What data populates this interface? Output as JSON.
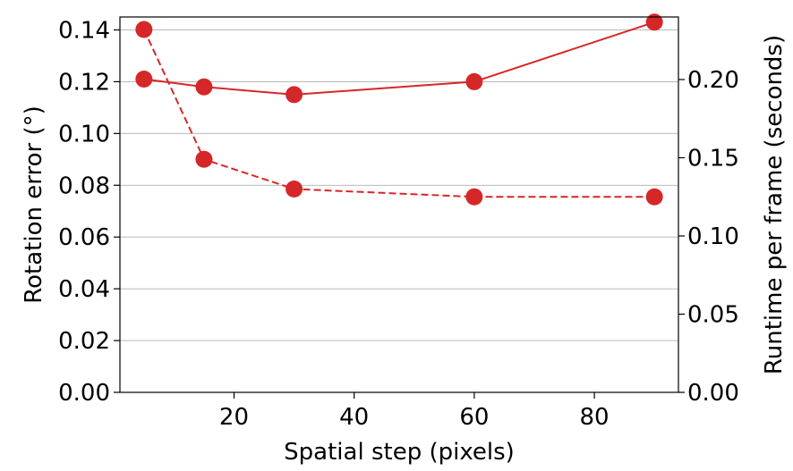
{
  "chart_data": {
    "type": "line",
    "x": [
      5,
      15,
      30,
      60,
      90
    ],
    "xlabel": "Spatial step (pixels)",
    "ylabel_left": "Rotation error (°)",
    "ylabel_right": "Runtime per frame (seconds)",
    "xlim": [
      1,
      94
    ],
    "ylim_left": [
      0,
      0.145
    ],
    "ylim_right": [
      0,
      0.24
    ],
    "xticks": [
      20,
      40,
      60,
      80
    ],
    "xtick_labels": [
      "20",
      "40",
      "60",
      "80"
    ],
    "yticks_left": [
      0,
      0.02,
      0.04,
      0.06,
      0.08,
      0.1,
      0.12,
      0.14
    ],
    "ytick_labels_left": [
      "0.00",
      "0.02",
      "0.04",
      "0.06",
      "0.08",
      "0.10",
      "0.12",
      "0.14"
    ],
    "yticks_right": [
      0,
      0.05,
      0.1,
      0.15,
      0.2
    ],
    "ytick_labels_right": [
      "0.00",
      "0.05",
      "0.10",
      "0.15",
      "0.20"
    ],
    "grid": "horizontal",
    "color": "#d62728",
    "series": [
      {
        "axis": "left",
        "style": "solid",
        "values": [
          0.121,
          0.118,
          0.115,
          0.12,
          0.143
        ]
      },
      {
        "axis": "right",
        "style": "dashed",
        "values": [
          0.232,
          0.149,
          0.13,
          0.125,
          0.125
        ]
      }
    ]
  }
}
